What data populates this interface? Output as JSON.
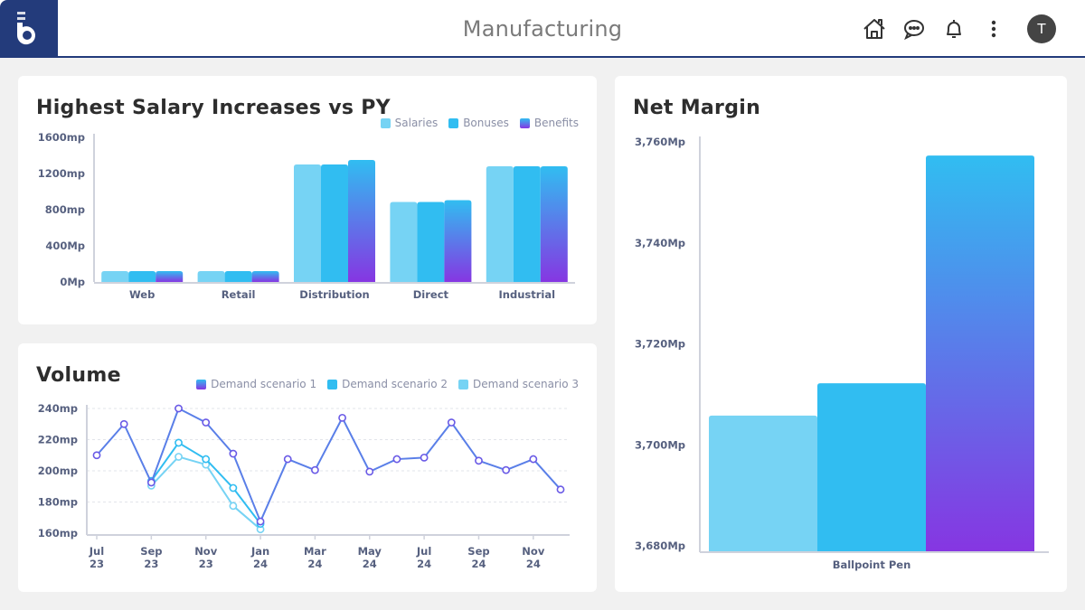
{
  "header": {
    "title": "Manufacturing",
    "logo": "brand-b-logo",
    "icons": [
      "home-icon",
      "chat-icon",
      "bell-icon",
      "more-vertical-icon"
    ],
    "avatar_initial": "T"
  },
  "colors": {
    "brand": "#233b7b",
    "salaries": "#76d3f4",
    "bonuses": "#31bdf1",
    "benefits_top": "#31bdf1",
    "benefits_bottom": "#8636e2",
    "scenario1_top": "#31bdf1",
    "scenario1_bottom": "#8636e2",
    "scenario2": "#31bdf1",
    "scenario3": "#76d3f4"
  },
  "chart_data": [
    {
      "id": "salary",
      "type": "bar",
      "title": "Highest Salary Increases vs PY",
      "categories": [
        "Web",
        "Retail",
        "Distribution",
        "Direct",
        "Industrial"
      ],
      "series": [
        {
          "name": "Salaries",
          "values": [
            120,
            120,
            1300,
            885,
            1280
          ]
        },
        {
          "name": "Bonuses",
          "values": [
            120,
            120,
            1300,
            885,
            1280
          ]
        },
        {
          "name": "Benefits",
          "values": [
            120,
            120,
            1350,
            905,
            1280
          ]
        }
      ],
      "ylim": [
        0,
        1600
      ],
      "yticks": [
        {
          "value": 0,
          "label": "0Mp"
        },
        {
          "value": 400,
          "label": "400Mp"
        },
        {
          "value": 800,
          "label": "800mp"
        },
        {
          "value": 1200,
          "label": "1200mp"
        },
        {
          "value": 1600,
          "label": "1600mp"
        }
      ],
      "legend": "top-right",
      "xlabel": "",
      "ylabel": "",
      "grid": false
    },
    {
      "id": "volume",
      "type": "line",
      "title": "Volume",
      "x_count": 18,
      "xticks": [
        {
          "index": 0,
          "label": [
            "Jul",
            "23"
          ]
        },
        {
          "index": 2,
          "label": [
            "Sep",
            "23"
          ]
        },
        {
          "index": 4,
          "label": [
            "Nov",
            "23"
          ]
        },
        {
          "index": 6,
          "label": [
            "Jan",
            "24"
          ]
        },
        {
          "index": 8,
          "label": [
            "Mar",
            "24"
          ]
        },
        {
          "index": 10,
          "label": [
            "May",
            "24"
          ]
        },
        {
          "index": 12,
          "label": [
            "Jul",
            "24"
          ]
        },
        {
          "index": 14,
          "label": [
            "Sep",
            "24"
          ]
        },
        {
          "index": 16,
          "label": [
            "Nov",
            "24"
          ]
        }
      ],
      "series": [
        {
          "name": "Demand scenario 1",
          "start": 0,
          "values": [
            210,
            230,
            192.5,
            240,
            231,
            211,
            167.5,
            207.5,
            200.5,
            234,
            199.5,
            207.5,
            208.5,
            231,
            206.5,
            200.5,
            207.5,
            188
          ]
        },
        {
          "name": "Demand scenario 2",
          "start": 2,
          "values": [
            193.5,
            218,
            207.5,
            189,
            166
          ]
        },
        {
          "name": "Demand scenario 3",
          "start": 2,
          "values": [
            190.5,
            209,
            204,
            177.5,
            162.5
          ]
        }
      ],
      "ylim": [
        160,
        240
      ],
      "yticks": [
        {
          "value": 160,
          "label": "160mp"
        },
        {
          "value": 180,
          "label": "180mp"
        },
        {
          "value": 200,
          "label": "200mp"
        },
        {
          "value": 220,
          "label": "220mp"
        },
        {
          "value": 240,
          "label": "240mp"
        }
      ],
      "legend": "top-right",
      "grid": true
    },
    {
      "id": "margin",
      "type": "bar",
      "title": "Net Margin",
      "categories": [
        "Ballpoint Pen"
      ],
      "series": [
        {
          "name": "Salaries",
          "values": [
            3705.8
          ]
        },
        {
          "name": "Bonuses",
          "values": [
            3712.2
          ]
        },
        {
          "name": "Benefits",
          "values": [
            3757.3
          ]
        }
      ],
      "ylim": [
        3680,
        3760
      ],
      "yticks": [
        {
          "value": 3680,
          "label": "3,680Mp"
        },
        {
          "value": 3700,
          "label": "3,700Mp"
        },
        {
          "value": 3720,
          "label": "3,720Mp"
        },
        {
          "value": 3740,
          "label": "3,740Mp"
        },
        {
          "value": 3760,
          "label": "3,760Mp"
        }
      ],
      "legend": "none",
      "grid": false
    }
  ]
}
